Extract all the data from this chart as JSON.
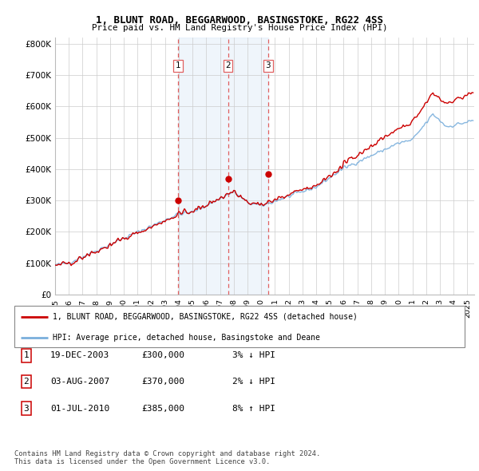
{
  "title": "1, BLUNT ROAD, BEGGARWOOD, BASINGSTOKE, RG22 4SS",
  "subtitle": "Price paid vs. HM Land Registry's House Price Index (HPI)",
  "ylabel_ticks": [
    "£0",
    "£100K",
    "£200K",
    "£300K",
    "£400K",
    "£500K",
    "£600K",
    "£700K",
    "£800K"
  ],
  "ytick_values": [
    0,
    100000,
    200000,
    300000,
    400000,
    500000,
    600000,
    700000,
    800000
  ],
  "ylim": [
    0,
    820000
  ],
  "xlim_start": 1995.0,
  "xlim_end": 2025.5,
  "hpi_color": "#7aafdc",
  "price_color": "#cc0000",
  "dashed_color": "#e06060",
  "shade_color": "#ddeeff",
  "background_color": "#ffffff",
  "grid_color": "#cccccc",
  "transactions": [
    {
      "num": 1,
      "date": "19-DEC-2003",
      "price": 300000,
      "year": 2003.96,
      "label": "£300,000",
      "hpi_diff": "3% ↓ HPI"
    },
    {
      "num": 2,
      "date": "03-AUG-2007",
      "price": 370000,
      "year": 2007.58,
      "label": "£370,000",
      "hpi_diff": "2% ↓ HPI"
    },
    {
      "num": 3,
      "date": "01-JUL-2010",
      "price": 385000,
      "year": 2010.5,
      "label": "£385,000",
      "hpi_diff": "8% ↑ HPI"
    }
  ],
  "legend_entries": [
    "1, BLUNT ROAD, BEGGARWOOD, BASINGSTOKE, RG22 4SS (detached house)",
    "HPI: Average price, detached house, Basingstoke and Deane"
  ],
  "table_rows": [
    [
      "1",
      "19-DEC-2003",
      "£300,000",
      "3% ↓ HPI"
    ],
    [
      "2",
      "03-AUG-2007",
      "£370,000",
      "2% ↓ HPI"
    ],
    [
      "3",
      "01-JUL-2010",
      "£385,000",
      "8% ↑ HPI"
    ]
  ],
  "footnote": "Contains HM Land Registry data © Crown copyright and database right 2024.\nThis data is licensed under the Open Government Licence v3.0.",
  "xtick_years": [
    1995,
    1996,
    1997,
    1998,
    1999,
    2000,
    2001,
    2002,
    2003,
    2004,
    2005,
    2006,
    2007,
    2008,
    2009,
    2010,
    2011,
    2012,
    2013,
    2014,
    2015,
    2016,
    2017,
    2018,
    2019,
    2020,
    2021,
    2022,
    2023,
    2024,
    2025
  ]
}
